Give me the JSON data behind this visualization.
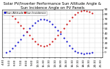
{
  "title": "Solar PV/Inverter Performance Sun Altitude Angle & Sun Incidence Angle on PV Panels",
  "background_color": "#ffffff",
  "grid_color": "#bbbbbb",
  "blue_color": "#0000cc",
  "red_color": "#cc0000",
  "legend_labels": [
    "Sun Altitude",
    "Sun Incidence"
  ],
  "ylim": [
    -10,
    90
  ],
  "yticks": [
    0,
    10,
    20,
    30,
    40,
    50,
    60,
    70,
    80,
    90
  ],
  "ytick_labels": [
    "0",
    "10",
    "20",
    "30",
    "40",
    "50",
    "60",
    "70",
    "80",
    "90"
  ],
  "blue_x": [
    5.0,
    5.5,
    6.0,
    6.5,
    7.0,
    7.5,
    8.0,
    8.5,
    9.0,
    9.5,
    10.0,
    10.5,
    11.0,
    11.5,
    12.0,
    12.5,
    13.0,
    13.5,
    14.0,
    14.5,
    15.0,
    15.5,
    16.0,
    16.5,
    17.0,
    17.5,
    18.0,
    18.5,
    19.0,
    19.5,
    20.0
  ],
  "blue_y": [
    0,
    3,
    8,
    14,
    21,
    28,
    36,
    43,
    50,
    57,
    62,
    66,
    69,
    70,
    68,
    65,
    60,
    54,
    47,
    39,
    31,
    23,
    15,
    8,
    3,
    0,
    -2,
    -3,
    -2,
    -1,
    0
  ],
  "red_x": [
    5.0,
    5.5,
    6.0,
    6.5,
    7.0,
    7.5,
    8.0,
    8.5,
    9.0,
    9.5,
    10.0,
    10.5,
    11.0,
    11.5,
    12.0,
    12.5,
    13.0,
    13.5,
    14.0,
    14.5,
    15.0,
    15.5,
    16.0,
    16.5,
    17.0,
    17.5,
    18.0,
    18.5,
    19.0,
    19.5,
    20.0
  ],
  "red_y": [
    85,
    82,
    77,
    71,
    64,
    57,
    50,
    43,
    36,
    29,
    23,
    18,
    14,
    13,
    15,
    18,
    23,
    29,
    36,
    43,
    51,
    59,
    67,
    74,
    80,
    84,
    87,
    88,
    87,
    85,
    83
  ],
  "xtick_labels": [
    "4:30",
    "5:33",
    "6:30",
    "7:30",
    "8:30",
    "9:30",
    "10:30",
    "11:30",
    "12:30",
    "13:30",
    "14:30",
    "15:30",
    "16:30",
    "17:30",
    "18:30",
    "19:30",
    "20:30",
    "21:30"
  ],
  "xtick_vals": [
    4.5,
    5.55,
    6.5,
    7.5,
    8.5,
    9.5,
    10.5,
    11.5,
    12.5,
    13.5,
    14.5,
    15.5,
    16.5,
    17.5,
    18.5,
    19.5,
    20.5,
    21.5
  ],
  "xlim": [
    4.2,
    21.8
  ],
  "title_fontsize": 4.0,
  "tick_fontsize": 3.0,
  "legend_fontsize": 3.0,
  "marker_size": 1.2,
  "yaxis_right": true
}
